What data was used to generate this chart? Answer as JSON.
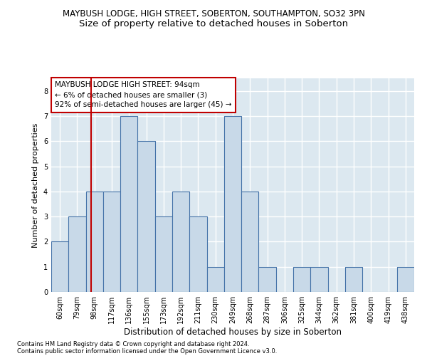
{
  "title1": "MAYBUSH LODGE, HIGH STREET, SOBERTON, SOUTHAMPTON, SO32 3PN",
  "title2": "Size of property relative to detached houses in Soberton",
  "xlabel": "Distribution of detached houses by size in Soberton",
  "ylabel": "Number of detached properties",
  "footnote1": "Contains HM Land Registry data © Crown copyright and database right 2024.",
  "footnote2": "Contains public sector information licensed under the Open Government Licence v3.0.",
  "categories": [
    "60sqm",
    "79sqm",
    "98sqm",
    "117sqm",
    "136sqm",
    "155sqm",
    "173sqm",
    "192sqm",
    "211sqm",
    "230sqm",
    "249sqm",
    "268sqm",
    "287sqm",
    "306sqm",
    "325sqm",
    "344sqm",
    "362sqm",
    "381sqm",
    "400sqm",
    "419sqm",
    "438sqm"
  ],
  "values": [
    2,
    3,
    4,
    4,
    7,
    6,
    3,
    4,
    3,
    1,
    7,
    4,
    1,
    0,
    1,
    1,
    0,
    1,
    0,
    0,
    1
  ],
  "bar_color": "#c8d9e8",
  "bar_edge_color": "#4472a8",
  "vline_color": "#c00000",
  "annotation_box_edge": "#c00000",
  "annotation_box_color": "#ffffff",
  "property_label": "MAYBUSH LODGE HIGH STREET: 94sqm",
  "annotation_line1": "← 6% of detached houses are smaller (3)",
  "annotation_line2": "92% of semi-detached houses are larger (45) →",
  "ylim": [
    0,
    8.5
  ],
  "yticks": [
    0,
    1,
    2,
    3,
    4,
    5,
    6,
    7,
    8
  ],
  "background_color": "#dce8f0",
  "plot_bg_color": "#dce8f0",
  "figure_bg_color": "#ffffff",
  "grid_color": "#ffffff",
  "title1_fontsize": 8.5,
  "title2_fontsize": 9.5,
  "tick_fontsize": 7,
  "ylabel_fontsize": 8,
  "xlabel_fontsize": 8.5,
  "annotation_fontsize": 7.5,
  "footnote_fontsize": 6
}
